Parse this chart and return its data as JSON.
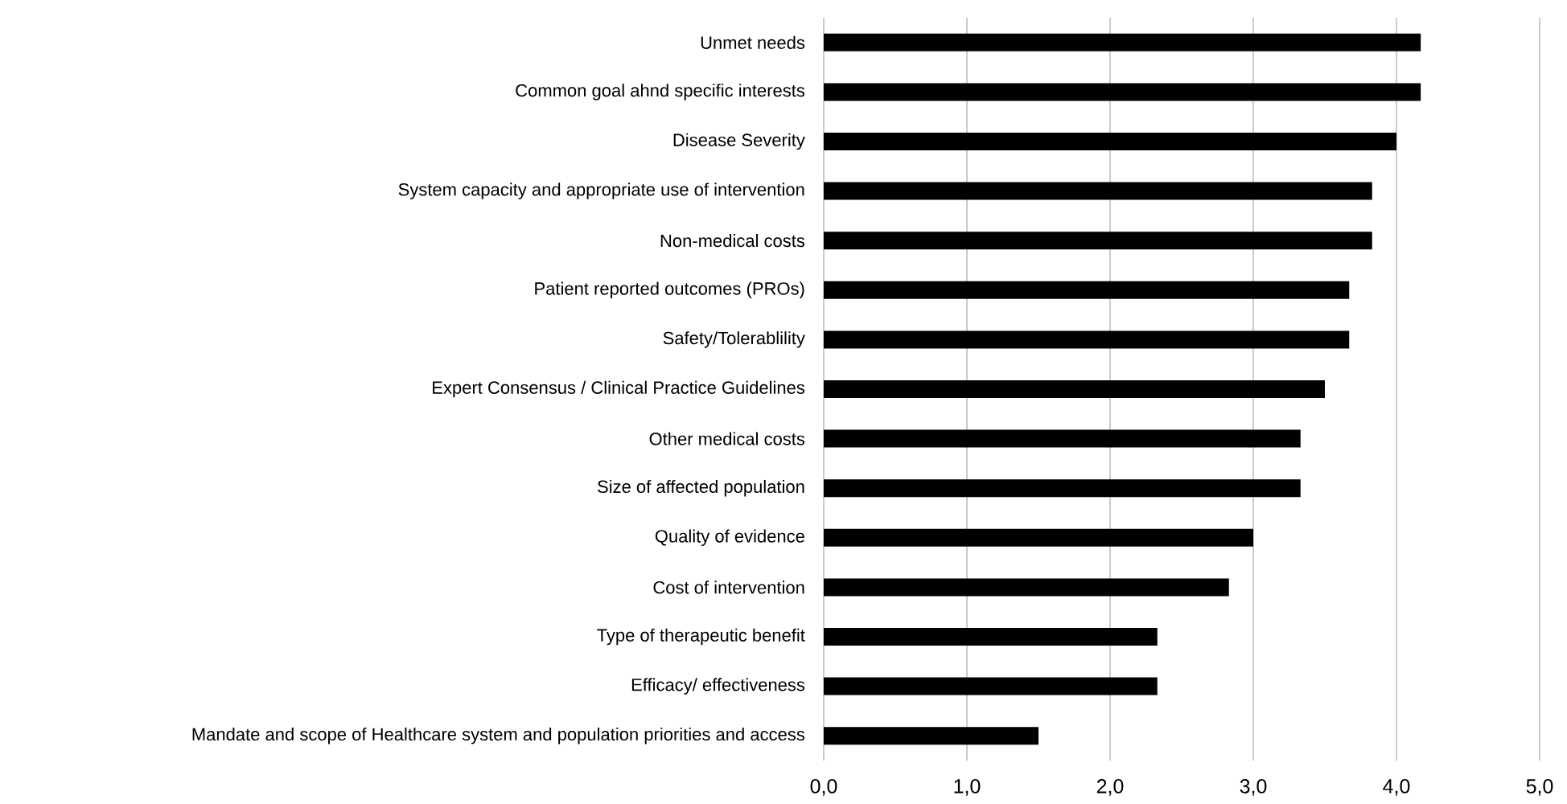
{
  "chart_data": {
    "type": "bar",
    "orientation": "horizontal",
    "categories": [
      "Unmet needs",
      "Common goal ahnd specific interests",
      "Disease Severity",
      "System capacity and appropriate use of intervention",
      "Non-medical costs",
      "Patient reported outcomes (PROs)",
      "Safety/Tolerablility",
      "Expert Consensus / Clinical Practice Guidelines",
      "Other medical costs",
      "Size of affected population",
      "Quality of evidence",
      "Cost of intervention",
      "Type of therapeutic benefit",
      "Efficacy/ effectiveness",
      "Mandate and scope of Healthcare system and population priorities and access"
    ],
    "values": [
      4.17,
      4.17,
      4.0,
      3.83,
      3.83,
      3.67,
      3.67,
      3.5,
      3.33,
      3.33,
      3.0,
      2.83,
      2.33,
      2.33,
      1.5
    ],
    "color": "#000000",
    "xlim": [
      0,
      5
    ],
    "xticks": [
      {
        "value": 0,
        "label": "0,0"
      },
      {
        "value": 1,
        "label": "1,0"
      },
      {
        "value": 2,
        "label": "2,0"
      },
      {
        "value": 3,
        "label": "3,0"
      },
      {
        "value": 4,
        "label": "4,0"
      },
      {
        "value": 5,
        "label": "5,0"
      }
    ],
    "grid": "x"
  }
}
